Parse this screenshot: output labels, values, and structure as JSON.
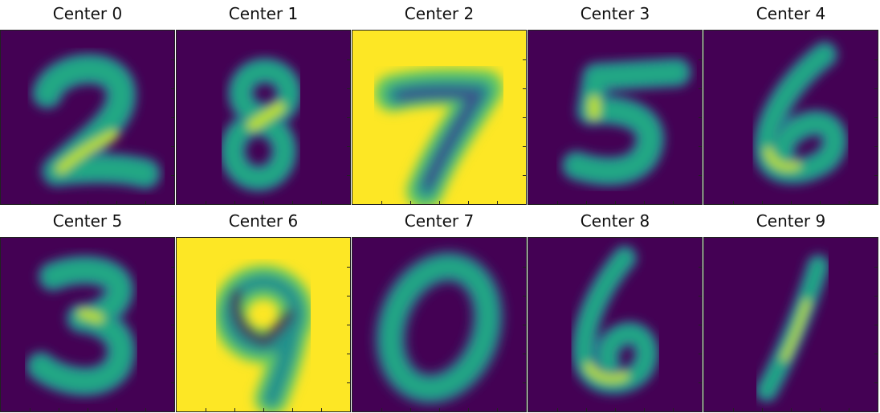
{
  "colors": {
    "dark": "#440154",
    "light": "#fde725"
  },
  "panels": [
    {
      "title": "Center 0",
      "digit": "2",
      "background": "dark"
    },
    {
      "title": "Center 1",
      "digit": "8",
      "background": "dark"
    },
    {
      "title": "Center 2",
      "digit": "7",
      "background": "light"
    },
    {
      "title": "Center 3",
      "digit": "5",
      "background": "dark"
    },
    {
      "title": "Center 4",
      "digit": "6",
      "background": "dark"
    },
    {
      "title": "Center 5",
      "digit": "3",
      "background": "dark"
    },
    {
      "title": "Center 6",
      "digit": "9",
      "background": "light"
    },
    {
      "title": "Center 7",
      "digit": "0",
      "background": "dark"
    },
    {
      "title": "Center 8",
      "digit": "6",
      "background": "dark"
    },
    {
      "title": "Center 9",
      "digit": "1",
      "background": "dark"
    }
  ]
}
